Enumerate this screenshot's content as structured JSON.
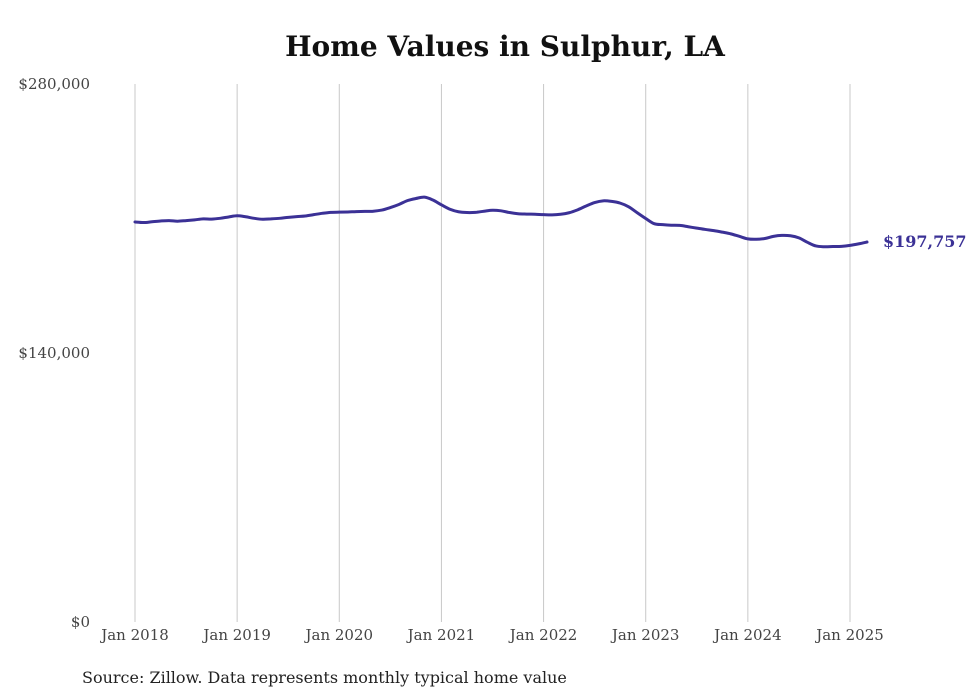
{
  "title": "Home Values in Sulphur, LA",
  "source": "Source: Zillow. Data represents monthly typical home value",
  "colors": {
    "line": "#3b3196",
    "grid": "#c8c8c8",
    "text": "#444444"
  },
  "chart_data": {
    "type": "line",
    "title": "Home Values in Sulphur, LA",
    "xlabel": "",
    "ylabel": "",
    "ylim": [
      0,
      280000
    ],
    "yticks": [
      {
        "value": 0,
        "label": "$0"
      },
      {
        "value": 140000,
        "label": "$140,000"
      },
      {
        "value": 280000,
        "label": "$280,000"
      }
    ],
    "xticks": [
      {
        "year": 2018,
        "label": "Jan 2018"
      },
      {
        "year": 2019,
        "label": "Jan 2019"
      },
      {
        "year": 2020,
        "label": "Jan 2020"
      },
      {
        "year": 2021,
        "label": "Jan 2021"
      },
      {
        "year": 2022,
        "label": "Jan 2022"
      },
      {
        "year": 2023,
        "label": "Jan 2023"
      },
      {
        "year": 2024,
        "label": "Jan 2024"
      },
      {
        "year": 2025,
        "label": "Jan 2025"
      }
    ],
    "xlim": [
      "2018-01",
      "2025-05"
    ],
    "grid": "vertical",
    "end_label": "$197,757",
    "series": [
      {
        "points": [
          [
            "2018-01",
            208200
          ],
          [
            "2018-02",
            207900
          ],
          [
            "2018-03",
            208300
          ],
          [
            "2018-04",
            208700
          ],
          [
            "2018-05",
            208900
          ],
          [
            "2018-06",
            208600
          ],
          [
            "2018-07",
            208900
          ],
          [
            "2018-08",
            209300
          ],
          [
            "2018-09",
            209800
          ],
          [
            "2018-10",
            209700
          ],
          [
            "2018-11",
            210100
          ],
          [
            "2018-12",
            210800
          ],
          [
            "2019-01",
            211400
          ],
          [
            "2019-02",
            210900
          ],
          [
            "2019-03",
            210100
          ],
          [
            "2019-04",
            209600
          ],
          [
            "2019-05",
            209800
          ],
          [
            "2019-06",
            210100
          ],
          [
            "2019-07",
            210600
          ],
          [
            "2019-08",
            211000
          ],
          [
            "2019-09",
            211300
          ],
          [
            "2019-10",
            212000
          ],
          [
            "2019-11",
            212700
          ],
          [
            "2019-12",
            213200
          ],
          [
            "2020-01",
            213300
          ],
          [
            "2020-02",
            213400
          ],
          [
            "2020-03",
            213600
          ],
          [
            "2020-04",
            213700
          ],
          [
            "2020-05",
            213800
          ],
          [
            "2020-06",
            214400
          ],
          [
            "2020-07",
            215700
          ],
          [
            "2020-08",
            217300
          ],
          [
            "2020-09",
            219300
          ],
          [
            "2020-10",
            220400
          ],
          [
            "2020-11",
            221100
          ],
          [
            "2020-12",
            219600
          ],
          [
            "2021-01",
            217100
          ],
          [
            "2021-02",
            214800
          ],
          [
            "2021-03",
            213500
          ],
          [
            "2021-04",
            213100
          ],
          [
            "2021-05",
            213200
          ],
          [
            "2021-06",
            213800
          ],
          [
            "2021-07",
            214300
          ],
          [
            "2021-08",
            214000
          ],
          [
            "2021-09",
            213100
          ],
          [
            "2021-10",
            212500
          ],
          [
            "2021-11",
            212300
          ],
          [
            "2021-12",
            212200
          ],
          [
            "2022-01",
            212000
          ],
          [
            "2022-02",
            211900
          ],
          [
            "2022-03",
            212200
          ],
          [
            "2022-04",
            213000
          ],
          [
            "2022-05",
            214500
          ],
          [
            "2022-06",
            216500
          ],
          [
            "2022-07",
            218300
          ],
          [
            "2022-08",
            219200
          ],
          [
            "2022-09",
            218900
          ],
          [
            "2022-10",
            218000
          ],
          [
            "2022-11",
            216100
          ],
          [
            "2022-12",
            213000
          ],
          [
            "2023-01",
            210000
          ],
          [
            "2023-02",
            207300
          ],
          [
            "2023-03",
            206800
          ],
          [
            "2023-04",
            206500
          ],
          [
            "2023-05",
            206400
          ],
          [
            "2023-06",
            205700
          ],
          [
            "2023-07",
            205000
          ],
          [
            "2023-08",
            204300
          ],
          [
            "2023-09",
            203700
          ],
          [
            "2023-10",
            202900
          ],
          [
            "2023-11",
            202000
          ],
          [
            "2023-12",
            200700
          ],
          [
            "2024-01",
            199400
          ],
          [
            "2024-02",
            199200
          ],
          [
            "2024-03",
            199600
          ],
          [
            "2024-04",
            200700
          ],
          [
            "2024-05",
            201200
          ],
          [
            "2024-06",
            201000
          ],
          [
            "2024-07",
            199900
          ],
          [
            "2024-08",
            197600
          ],
          [
            "2024-09",
            195700
          ],
          [
            "2024-10",
            195300
          ],
          [
            "2024-11",
            195400
          ],
          [
            "2024-12",
            195500
          ],
          [
            "2025-01",
            196000
          ],
          [
            "2025-02",
            196800
          ],
          [
            "2025-03",
            197757
          ]
        ]
      }
    ]
  }
}
